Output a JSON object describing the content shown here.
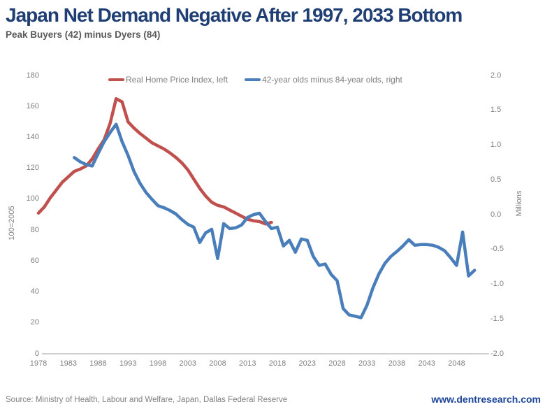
{
  "header": {
    "title": "Japan Net Demand Negative After 1997, 2033 Bottom",
    "subtitle": "Peak Buyers (42) minus Dyers (84)"
  },
  "footer": {
    "source": "Source: Ministry of Health, Labour and Welfare, Japan, Dallas Federal Reserve",
    "website": "www.dentresearch.com"
  },
  "colors": {
    "title": "#1F3E73",
    "subtitle": "#595959",
    "axis_text": "#7F7F7F",
    "axis_line": "#BFBFBF",
    "red_line": "#C0504D",
    "blue_line": "#4A7EBB",
    "website": "#1B4397"
  },
  "chart_data": {
    "type": "line",
    "title": "Japan Net Demand Negative After 1997, 2033 Bottom",
    "subtitle": "Peak Buyers (42) minus Dyers (84)",
    "legend_position": "top",
    "grid": false,
    "x_axis": {
      "ticks": [
        1978,
        1983,
        1988,
        1993,
        1998,
        2003,
        2008,
        2013,
        2018,
        2023,
        2028,
        2033,
        2038,
        2043,
        2048
      ]
    },
    "left_axis": {
      "label": "100=2005",
      "min": 0,
      "max": 180,
      "ticks": [
        180,
        160,
        140,
        120,
        100,
        80,
        60,
        40,
        20,
        0
      ]
    },
    "right_axis": {
      "label": "Millions",
      "min": -2.0,
      "max": 2.0,
      "ticks": [
        2.0,
        1.5,
        1.0,
        0.5,
        0.0,
        -0.5,
        -1.0,
        -1.5,
        -2.0
      ]
    },
    "series": [
      {
        "name": "Real Home Price Index, left",
        "axis": "left",
        "color": "#C0504D",
        "start_year": 1978,
        "values": [
          91,
          95,
          101,
          106,
          111,
          114.5,
          118,
          119.5,
          121.5,
          126,
          132.5,
          138.5,
          149,
          165,
          163,
          150,
          146,
          142.5,
          139.5,
          136.5,
          134.5,
          132.5,
          130,
          127,
          123.5,
          119,
          113,
          107,
          102,
          98,
          96,
          95,
          93,
          91,
          89,
          87,
          86,
          85.5,
          84,
          85
        ]
      },
      {
        "name": "42-year olds minus 84-year olds, right",
        "axis": "right",
        "color": "#4A7EBB",
        "start_year": 1984,
        "values": [
          0.82,
          0.76,
          0.72,
          0.7,
          0.88,
          1.05,
          1.18,
          1.3,
          1.05,
          0.85,
          0.62,
          0.45,
          0.32,
          0.22,
          0.13,
          0.1,
          0.06,
          0.01,
          -0.07,
          -0.14,
          -0.18,
          -0.4,
          -0.26,
          -0.21,
          -0.63,
          -0.13,
          -0.2,
          -0.19,
          -0.15,
          -0.04,
          0.0,
          0.02,
          -0.1,
          -0.2,
          -0.18,
          -0.45,
          -0.37,
          -0.54,
          -0.35,
          -0.37,
          -0.6,
          -0.73,
          -0.71,
          -0.86,
          -0.95,
          -1.35,
          -1.44,
          -1.46,
          -1.48,
          -1.3,
          -1.05,
          -0.85,
          -0.7,
          -0.6,
          -0.53,
          -0.45,
          -0.36,
          -0.44,
          -0.43,
          -0.43,
          -0.44,
          -0.47,
          -0.52,
          -0.62,
          -0.73,
          -0.25,
          -0.88,
          -0.8
        ]
      }
    ]
  }
}
